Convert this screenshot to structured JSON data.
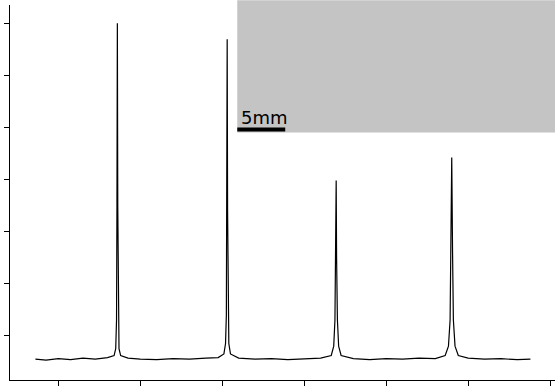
{
  "chart_data": {
    "type": "line",
    "color": "#000000",
    "grid": false,
    "tick_labels": false,
    "annotations": [
      "5mm"
    ],
    "xlim": [
      0.41,
      7.06
    ],
    "xticks": [
      1,
      2,
      3,
      4,
      5,
      6,
      7
    ],
    "ylim": [
      0.15,
      7.35
    ],
    "yticks": [
      1,
      2,
      3,
      4,
      5,
      6,
      7
    ],
    "x": [
      0.72,
      0.85,
      1.0,
      1.15,
      1.3,
      1.45,
      1.6,
      1.68,
      1.7,
      1.71,
      1.715,
      1.72,
      1.725,
      1.73,
      1.74,
      1.76,
      1.85,
      2.0,
      2.2,
      2.4,
      2.6,
      2.8,
      2.95,
      3.02,
      3.04,
      3.05,
      3.055,
      3.06,
      3.065,
      3.07,
      3.08,
      3.1,
      3.2,
      3.4,
      3.6,
      3.8,
      4.0,
      4.2,
      4.33,
      4.36,
      4.375,
      4.385,
      4.39,
      4.395,
      4.405,
      4.42,
      4.45,
      4.6,
      4.8,
      5.0,
      5.2,
      5.4,
      5.6,
      5.72,
      5.76,
      5.78,
      5.79,
      5.8,
      5.81,
      5.82,
      5.84,
      5.88,
      6.0,
      6.2,
      6.4,
      6.6,
      6.76
    ],
    "values": [
      0.55,
      0.53,
      0.56,
      0.54,
      0.57,
      0.55,
      0.58,
      0.62,
      0.75,
      1.3,
      3.5,
      7.0,
      3.5,
      1.3,
      0.75,
      0.62,
      0.57,
      0.55,
      0.54,
      0.56,
      0.55,
      0.57,
      0.58,
      0.65,
      0.85,
      1.4,
      3.4,
      6.69,
      3.4,
      1.4,
      0.85,
      0.65,
      0.57,
      0.55,
      0.56,
      0.54,
      0.56,
      0.57,
      0.62,
      0.8,
      1.3,
      2.5,
      3.98,
      2.5,
      1.3,
      0.8,
      0.62,
      0.56,
      0.54,
      0.56,
      0.55,
      0.57,
      0.56,
      0.62,
      0.8,
      1.3,
      2.6,
      4.42,
      2.6,
      1.3,
      0.8,
      0.62,
      0.57,
      0.55,
      0.56,
      0.54,
      0.55
    ]
  }
}
